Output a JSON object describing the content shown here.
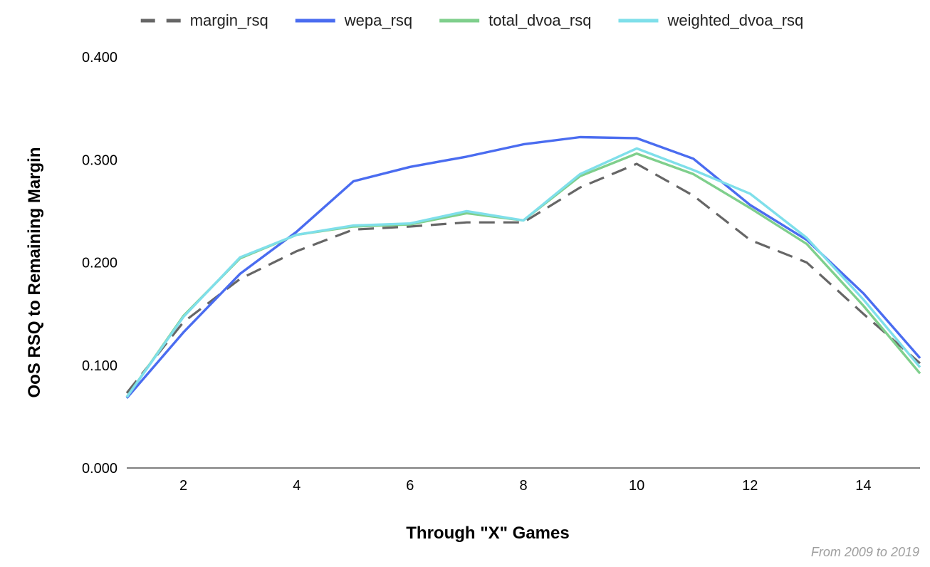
{
  "chart_data": {
    "type": "line",
    "title": "",
    "xlabel": "Through \"X\" Games",
    "ylabel": "OoS RSQ to Remaining Margin",
    "source_note": "From 2009 to 2019",
    "x": [
      1,
      2,
      3,
      4,
      5,
      6,
      7,
      8,
      9,
      10,
      11,
      12,
      13,
      14,
      15
    ],
    "xlim": [
      1,
      15
    ],
    "ylim": [
      0,
      0.4
    ],
    "x_ticks": [
      2,
      4,
      6,
      8,
      10,
      12,
      14
    ],
    "x_tick_labels": [
      "2",
      "4",
      "6",
      "8",
      "10",
      "12",
      "14"
    ],
    "y_ticks": [
      0,
      0.1,
      0.2,
      0.3,
      0.4
    ],
    "y_tick_labels": [
      "0.000",
      "0.100",
      "0.200",
      "0.300",
      "0.400"
    ],
    "grid": false,
    "legend_position": "top-center",
    "series": [
      {
        "name": "margin_rsq",
        "color": "#666666",
        "dashed": true,
        "values": [
          0.073,
          0.142,
          0.184,
          0.211,
          0.232,
          0.235,
          0.239,
          0.239,
          0.273,
          0.296,
          0.265,
          0.222,
          0.2,
          0.15,
          0.102
        ]
      },
      {
        "name": "wepa_rsq",
        "color": "#4a6cf0",
        "dashed": false,
        "values": [
          0.068,
          0.132,
          0.189,
          0.23,
          0.279,
          0.293,
          0.303,
          0.315,
          0.322,
          0.321,
          0.301,
          0.256,
          0.222,
          0.17,
          0.107
        ]
      },
      {
        "name": "total_dvoa_rsq",
        "color": "#7fcf8c",
        "dashed": false,
        "values": [
          0.069,
          0.148,
          0.204,
          0.227,
          0.235,
          0.237,
          0.248,
          0.241,
          0.284,
          0.306,
          0.286,
          0.253,
          0.218,
          0.158,
          0.092
        ]
      },
      {
        "name": "weighted_dvoa_rsq",
        "color": "#7fdfea",
        "dashed": false,
        "values": [
          0.069,
          0.147,
          0.205,
          0.227,
          0.236,
          0.238,
          0.25,
          0.241,
          0.286,
          0.311,
          0.29,
          0.267,
          0.224,
          0.164,
          0.098
        ]
      }
    ]
  }
}
